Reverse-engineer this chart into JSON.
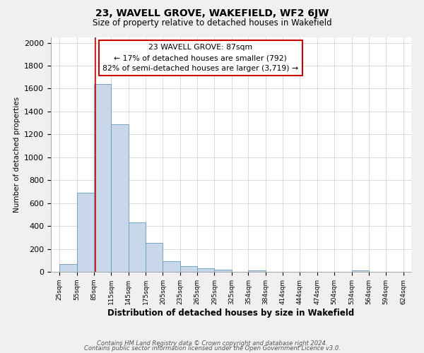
{
  "title": "23, WAVELL GROVE, WAKEFIELD, WF2 6JW",
  "subtitle": "Size of property relative to detached houses in Wakefield",
  "xlabel": "Distribution of detached houses by size in Wakefield",
  "ylabel": "Number of detached properties",
  "bar_values": [
    65,
    692,
    1640,
    1290,
    430,
    250,
    90,
    50,
    30,
    20,
    0,
    15,
    0,
    0,
    0,
    0,
    0,
    15,
    0,
    0
  ],
  "tick_positions": [
    25,
    55,
    85,
    115,
    145,
    175,
    205,
    235,
    265,
    295,
    325,
    354,
    384,
    414,
    444,
    474,
    504,
    534,
    564,
    594,
    624
  ],
  "bar_color": "#c8d8ea",
  "bar_edge_color": "#6699bb",
  "red_line_x": 87,
  "annotation_title": "23 WAVELL GROVE: 87sqm",
  "annotation_line1": "← 17% of detached houses are smaller (792)",
  "annotation_line2": "82% of semi-detached houses are larger (3,719) →",
  "annotation_box_color": "#ffffff",
  "annotation_box_edge": "#cc0000",
  "red_line_color": "#cc0000",
  "ylim": [
    0,
    2050
  ],
  "yticks": [
    0,
    200,
    400,
    600,
    800,
    1000,
    1200,
    1400,
    1600,
    1800,
    2000
  ],
  "footer_line1": "Contains HM Land Registry data © Crown copyright and database right 2024.",
  "footer_line2": "Contains public sector information licensed under the Open Government Licence v3.0.",
  "background_color": "#f0f0f0",
  "plot_background": "#ffffff",
  "grid_color": "#cccccc"
}
